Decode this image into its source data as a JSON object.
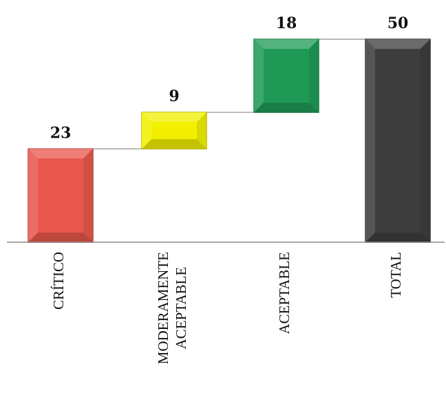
{
  "chart_data": {
    "type": "bar",
    "subtype": "waterfall",
    "categories": [
      [
        "CRÍTICO"
      ],
      [
        "MODERAMENTE",
        "ACEPTABLE"
      ],
      [
        "ACEPTABLE"
      ],
      [
        "TOTAL"
      ]
    ],
    "values": [
      23,
      9,
      18,
      50
    ],
    "is_total": [
      false,
      false,
      false,
      true
    ],
    "data_labels": [
      "23",
      "9",
      "18",
      "50"
    ],
    "colors": [
      "#e8574c",
      "#f2f000",
      "#1f9a56",
      "#3d3d3d"
    ],
    "ylim": [
      0,
      50
    ],
    "grid": false,
    "legend": "none",
    "title": "",
    "xlabel": "",
    "ylabel": ""
  }
}
